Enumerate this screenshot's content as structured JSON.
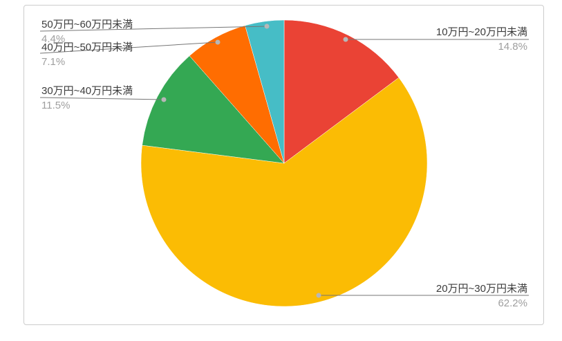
{
  "chart_data": {
    "type": "pie",
    "title": "",
    "start_angle_deg": 0,
    "direction": "clockwise",
    "legend_position": "none",
    "label_style": "outside-with-leader-lines",
    "slices": [
      {
        "label": "10万円~20万円未満",
        "value": 14.8,
        "pct_label": "14.8%",
        "color": "#EA4335",
        "label_side": "right"
      },
      {
        "label": "20万円~30万円未満",
        "value": 62.2,
        "pct_label": "62.2%",
        "color": "#FBBC04",
        "label_side": "right"
      },
      {
        "label": "30万円~40万円未満",
        "value": 11.5,
        "pct_label": "11.5%",
        "color": "#34A853",
        "label_side": "left"
      },
      {
        "label": "40万円~50万円未満",
        "value": 7.1,
        "pct_label": "7.1%",
        "color": "#FF6D01",
        "label_side": "left"
      },
      {
        "label": "50万円~60万円未満",
        "value": 4.4,
        "pct_label": "4.4%",
        "color": "#46BDC6",
        "label_side": "left"
      }
    ],
    "colors": {
      "leader_line": "#757575",
      "leader_dot": "#b7b7b7",
      "frame_border": "#cccccc",
      "label_text": "#3c3c3c",
      "pct_text": "#9e9e9e",
      "background": "#ffffff"
    }
  }
}
